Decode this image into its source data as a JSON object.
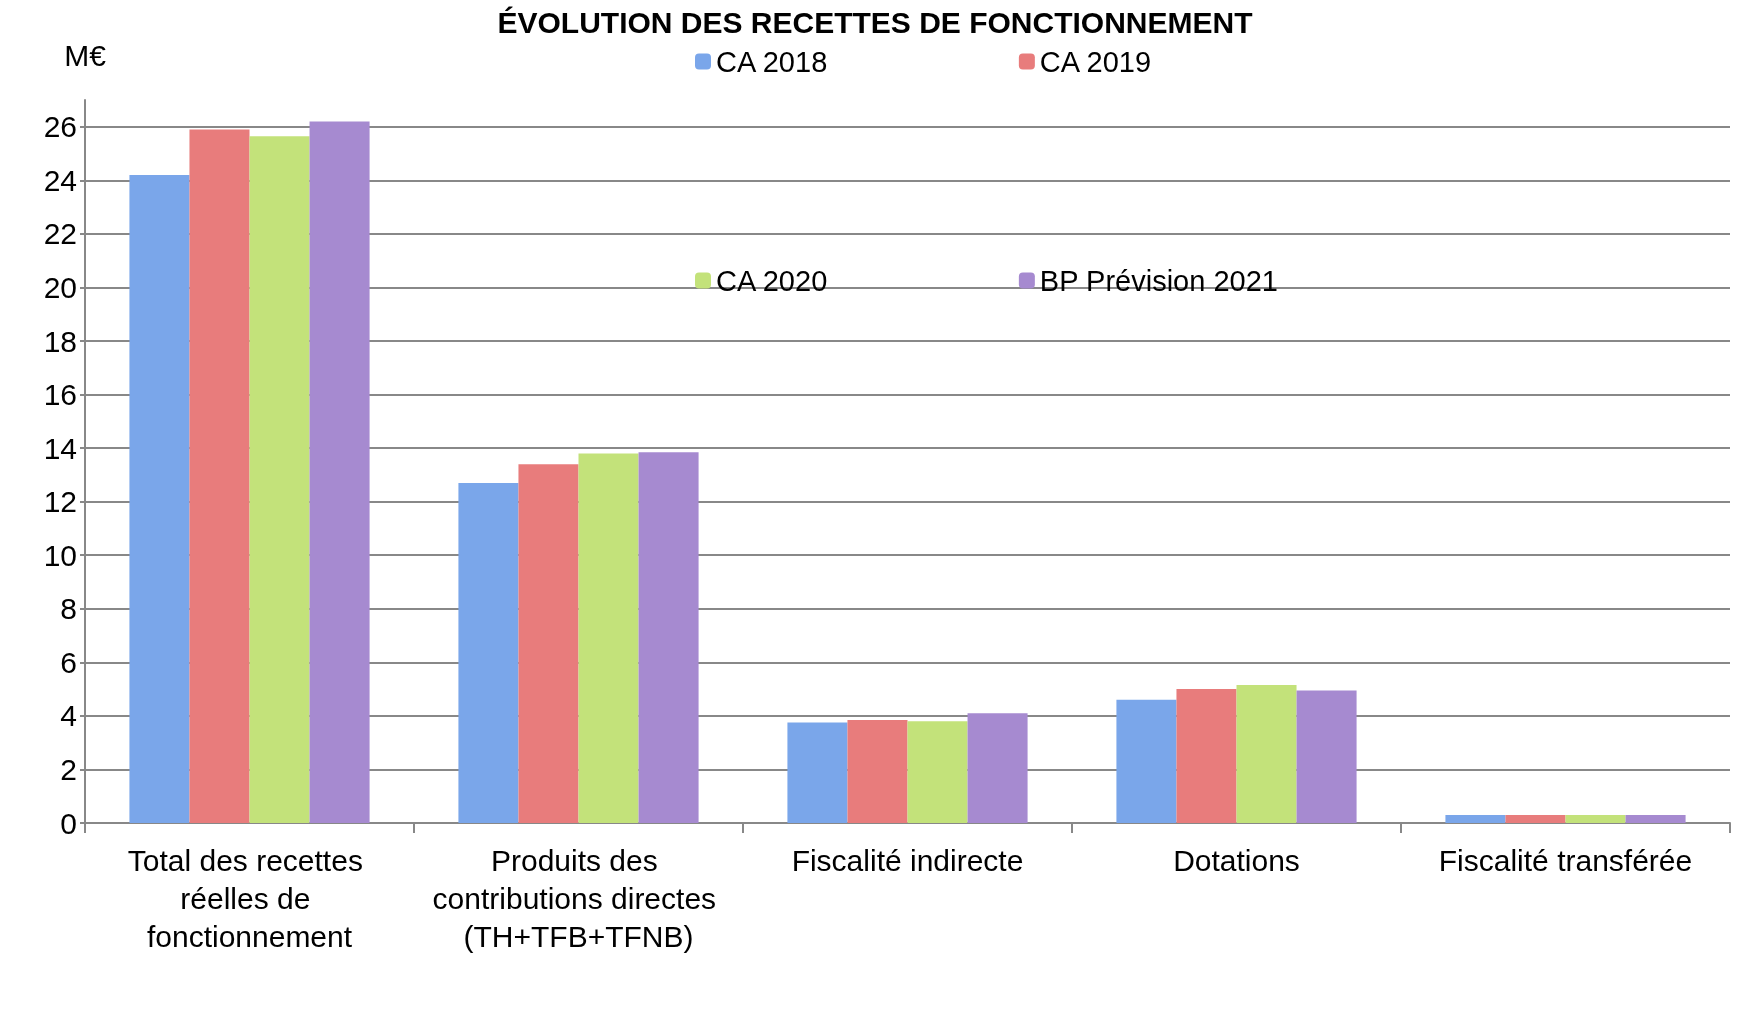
{
  "chart_data": {
    "type": "bar",
    "title": "ÉVOLUTION DES RECETTES DE FONCTIONNEMENT",
    "ylabel": "M€",
    "categories": [
      "Total des recettes réelles de fonctionnement",
      "Produits des contributions directes (TH+TFB+TFNB)",
      "Fiscalité indirecte",
      "Dotations",
      "Fiscalité transférée"
    ],
    "series": [
      {
        "name": "CA 2018",
        "color": "#7aa6ea",
        "values": [
          24.2,
          12.7,
          3.75,
          4.6,
          0.3
        ]
      },
      {
        "name": "CA 2019",
        "color": "#e87c7c",
        "values": [
          25.9,
          13.4,
          3.85,
          5.0,
          0.3
        ]
      },
      {
        "name": "CA 2020",
        "color": "#c3e27a",
        "values": [
          25.65,
          13.8,
          3.8,
          5.15,
          0.3
        ]
      },
      {
        "name": "BP Prévision 2021",
        "color": "#a68ad0",
        "values": [
          26.2,
          13.85,
          4.1,
          4.95,
          0.3
        ]
      }
    ],
    "ylim": [
      0,
      27
    ],
    "yticks": [
      0,
      2,
      4,
      6,
      8,
      10,
      12,
      14,
      16,
      18,
      20,
      22,
      24,
      26
    ],
    "grid": "y",
    "legend": "top right"
  }
}
